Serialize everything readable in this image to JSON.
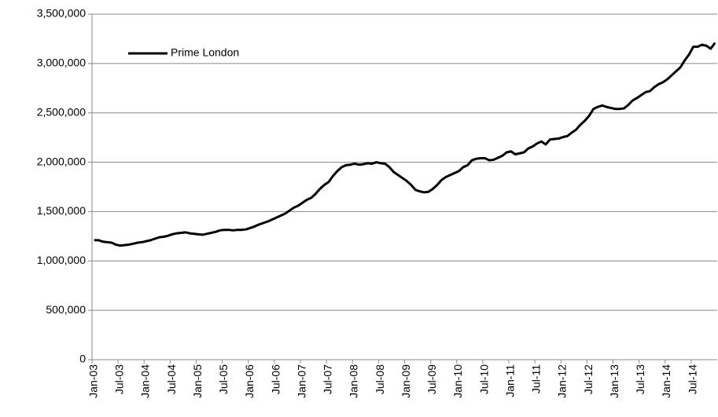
{
  "chart_data": {
    "type": "line",
    "categories": [
      "Jan-03",
      null,
      null,
      null,
      null,
      null,
      "Jul-03",
      null,
      null,
      null,
      null,
      null,
      "Jan-04",
      null,
      null,
      null,
      null,
      null,
      "Jul-04",
      null,
      null,
      null,
      null,
      null,
      "Jan-05",
      null,
      null,
      null,
      null,
      null,
      "Jul-05",
      null,
      null,
      null,
      null,
      null,
      "Jan-06",
      null,
      null,
      null,
      null,
      null,
      "Jul-06",
      null,
      null,
      null,
      null,
      null,
      "Jan-07",
      null,
      null,
      null,
      null,
      null,
      "Jul-07",
      null,
      null,
      null,
      null,
      null,
      "Jan-08",
      null,
      null,
      null,
      null,
      null,
      "Jul-08",
      null,
      null,
      null,
      null,
      null,
      "Jan-09",
      null,
      null,
      null,
      null,
      null,
      "Jul-09",
      null,
      null,
      null,
      null,
      null,
      "Jan-10",
      null,
      null,
      null,
      null,
      null,
      "Jul-10",
      null,
      null,
      null,
      null,
      null,
      "Jan-11",
      null,
      null,
      null,
      null,
      null,
      "Jul-11",
      null,
      null,
      null,
      null,
      null,
      "Jan-12",
      null,
      null,
      null,
      null,
      null,
      "Jul-12",
      null,
      null,
      null,
      null,
      null,
      "Jan-13",
      null,
      null,
      null,
      null,
      null,
      "Jul-13",
      null,
      null,
      null,
      null,
      null,
      "Jan-14",
      null,
      null,
      null,
      null,
      null,
      "Jul-14",
      null,
      null,
      null,
      null,
      null
    ],
    "series": [
      {
        "name": "Prime London",
        "color": "#000000",
        "values": [
          1210000,
          1210000,
          1195000,
          1190000,
          1185000,
          1165000,
          1155000,
          1160000,
          1165000,
          1175000,
          1185000,
          1190000,
          1200000,
          1210000,
          1225000,
          1240000,
          1245000,
          1255000,
          1270000,
          1280000,
          1285000,
          1290000,
          1280000,
          1275000,
          1270000,
          1265000,
          1275000,
          1285000,
          1295000,
          1310000,
          1315000,
          1315000,
          1310000,
          1315000,
          1315000,
          1320000,
          1335000,
          1350000,
          1370000,
          1385000,
          1400000,
          1420000,
          1440000,
          1460000,
          1480000,
          1510000,
          1540000,
          1560000,
          1590000,
          1620000,
          1640000,
          1680000,
          1730000,
          1770000,
          1800000,
          1860000,
          1910000,
          1950000,
          1970000,
          1975000,
          1985000,
          1975000,
          1980000,
          1990000,
          1985000,
          2000000,
          1990000,
          1985000,
          1950000,
          1900000,
          1870000,
          1840000,
          1810000,
          1770000,
          1720000,
          1705000,
          1695000,
          1700000,
          1730000,
          1770000,
          1820000,
          1850000,
          1870000,
          1890000,
          1910000,
          1950000,
          1970000,
          2020000,
          2035000,
          2040000,
          2040000,
          2020000,
          2025000,
          2045000,
          2065000,
          2100000,
          2110000,
          2080000,
          2090000,
          2100000,
          2140000,
          2160000,
          2190000,
          2210000,
          2180000,
          2230000,
          2235000,
          2240000,
          2255000,
          2265000,
          2300000,
          2330000,
          2380000,
          2420000,
          2470000,
          2540000,
          2560000,
          2575000,
          2560000,
          2550000,
          2540000,
          2540000,
          2545000,
          2580000,
          2625000,
          2650000,
          2680000,
          2710000,
          2720000,
          2760000,
          2790000,
          2810000,
          2840000,
          2880000,
          2920000,
          2960000,
          3030000,
          3090000,
          3170000,
          3170000,
          3190000,
          3180000,
          3150000,
          3210000
        ]
      }
    ],
    "ylim": [
      0,
      3500000
    ],
    "yticks": [
      0,
      {
        "value": 500000,
        "label": "500,000"
      },
      {
        "value": 1000000,
        "label": "1,000,000"
      },
      {
        "value": 1500000,
        "label": "1,500,000"
      },
      {
        "value": 2000000,
        "label": "2,000,000"
      },
      {
        "value": 2500000,
        "label": "2,500,000"
      },
      {
        "value": 3000000,
        "label": "3,000,000"
      },
      {
        "value": 3500000,
        "label": "3,500,000"
      }
    ],
    "grid": true,
    "legend": "upper-left"
  }
}
